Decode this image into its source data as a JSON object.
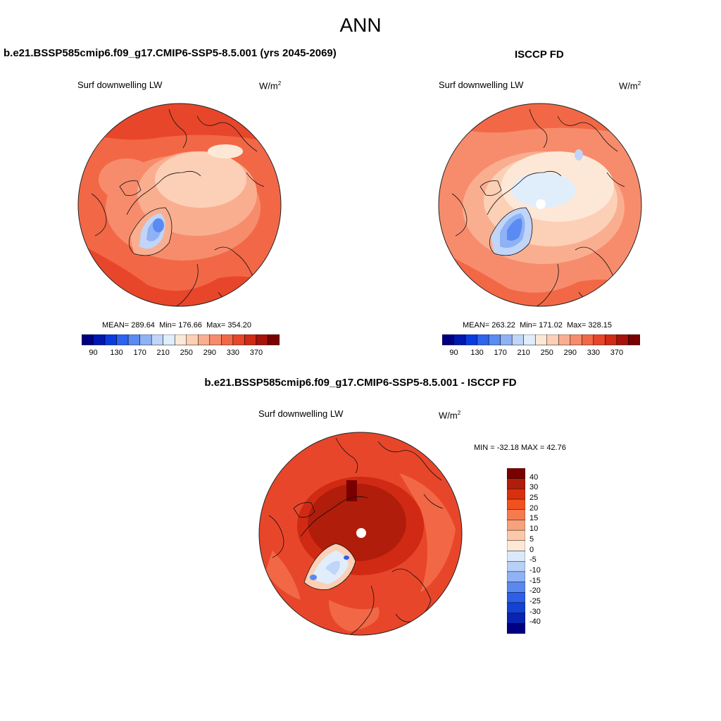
{
  "title": "ANN",
  "panel_left": {
    "title": "b.e21.BSSP585cmip6.f09_g17.CMIP6-SSP5-8.5.001 (yrs 2045-2069)",
    "variable": "Surf downwelling LW",
    "units_base": "W/m",
    "units_exp": "2",
    "stats": {
      "mean_label": "MEAN=",
      "mean": "289.64",
      "min_label": "Min=",
      "min": "176.66",
      "max_label": "Max=",
      "max": "354.20"
    }
  },
  "panel_right": {
    "title": "ISCCP FD",
    "variable": "Surf downwelling LW",
    "units_base": "W/m",
    "units_exp": "2",
    "stats": {
      "mean_label": "MEAN=",
      "mean": "263.22",
      "min_label": "Min=",
      "min": "171.02",
      "max_label": "Max=",
      "max": "328.15"
    }
  },
  "panel_diff": {
    "title": "b.e21.BSSP585cmip6.f09_g17.CMIP6-SSP5-8.5.001 - ISCCP FD",
    "variable": "Surf downwelling LW",
    "units_base": "W/m",
    "units_exp": "2",
    "range_text": "MIN = -32.18 MAX =  42.76"
  },
  "colorbar_abs": {
    "colors": [
      "#00007f",
      "#0018b0",
      "#0a3be0",
      "#2e63f0",
      "#5a8bf2",
      "#8fb2f5",
      "#c0d5f8",
      "#e0edfb",
      "#fde8d8",
      "#fcd0b6",
      "#faae90",
      "#f78c6c",
      "#f26846",
      "#e8462a",
      "#d02a14",
      "#a8120a",
      "#7a0000"
    ],
    "tick_labels": [
      "90",
      "130",
      "170",
      "210",
      "250",
      "290",
      "330",
      "370"
    ]
  },
  "colorbar_diff": {
    "colors": [
      "#7a0000",
      "#b01d0a",
      "#d8300f",
      "#f0521f",
      "#f47a4f",
      "#f7a27c",
      "#fbc9aa",
      "#fde8d8",
      "#dce9fb",
      "#b8cff6",
      "#8fb2f5",
      "#5a88ef",
      "#2e5fe8",
      "#1442d4",
      "#0824b0",
      "#000080"
    ],
    "tick_labels": [
      "40",
      "30",
      "25",
      "20",
      "15",
      "10",
      "5",
      "0",
      "-5",
      "-10",
      "-15",
      "-20",
      "-25",
      "-30",
      "-40"
    ]
  }
}
